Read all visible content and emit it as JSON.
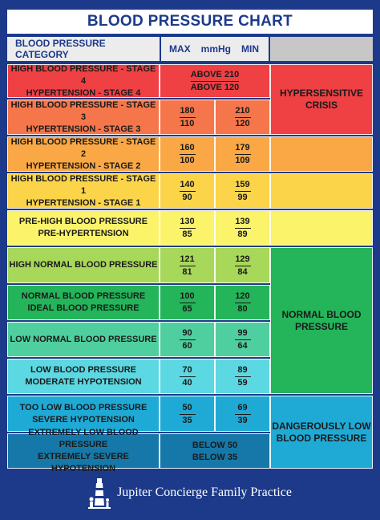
{
  "title": "BLOOD PRESSURE CHART",
  "header": {
    "category": "BLOOD PRESSURE CATEGORY",
    "max": "MAX",
    "unit": "mmHg",
    "min": "MIN"
  },
  "rows": [
    {
      "line1": "HIGH BLOOD PRESSURE - STAGE 4",
      "line2": "HYPERTENSION - STAGE 4",
      "combined_top": "ABOVE 210",
      "combined_bottom": "ABOVE 120",
      "color": "#ef4044"
    },
    {
      "line1": "HIGH BLOOD PRESSURE - STAGE 3",
      "line2": "HYPERTENSION - STAGE 3",
      "max_top": "180",
      "max_bottom": "110",
      "min_top": "210",
      "min_bottom": "120",
      "color": "#f4764a"
    },
    {
      "line1": "HIGH BLOOD PRESSURE - STAGE 2",
      "line2": "HYPERTENSION - STAGE 2",
      "max_top": "160",
      "max_bottom": "100",
      "min_top": "179",
      "min_bottom": "109",
      "color": "#f9a845"
    },
    {
      "line1": "HIGH BLOOD PRESSURE - STAGE 1",
      "line2": "HYPERTENSION - STAGE 1",
      "max_top": "140",
      "max_bottom": "90",
      "min_top": "159",
      "min_bottom": "99",
      "color": "#fbd449"
    },
    {
      "line1": "PRE-HIGH BLOOD PRESSURE",
      "line2": "PRE-HYPERTENSION",
      "max_top": "130",
      "max_bottom": "85",
      "min_top": "139",
      "min_bottom": "89",
      "color": "#fbf36a"
    },
    {
      "line1": "HIGH NORMAL BLOOD PRESSURE",
      "line2": "",
      "max_top": "121",
      "max_bottom": "81",
      "min_top": "129",
      "min_bottom": "84",
      "color": "#a8d85a"
    },
    {
      "line1": "NORMAL BLOOD PRESSURE",
      "line2": "IDEAL BLOOD PRESSURE",
      "max_top": "100",
      "max_bottom": "65",
      "min_top": "120",
      "min_bottom": "80",
      "color": "#24b45a"
    },
    {
      "line1": "LOW NORMAL BLOOD PRESSURE",
      "line2": "",
      "max_top": "90",
      "max_bottom": "60",
      "min_top": "99",
      "min_bottom": "64",
      "color": "#4fcfa0"
    },
    {
      "line1": "LOW BLOOD PRESSURE",
      "line2": "MODERATE HYPOTENSION",
      "max_top": "70",
      "max_bottom": "40",
      "min_top": "89",
      "min_bottom": "59",
      "color": "#5cd8e2"
    },
    {
      "line1": "TOO LOW BLOOD PRESSURE",
      "line2": "SEVERE HYPOTENSION",
      "max_top": "50",
      "max_bottom": "35",
      "min_top": "69",
      "min_bottom": "39",
      "color": "#1faad6"
    },
    {
      "line1": "EXTREMELY LOW BLOOD PRESSURE",
      "line2": "EXTREMELY SEVERE HYPOTENSION",
      "combined_top": "BELOW 50",
      "combined_bottom": "BELOW 35",
      "color": "#1678a8"
    }
  ],
  "groups": [
    {
      "label": "HYPERSENSITIVE CRISIS",
      "color": "#ef4044"
    },
    {
      "label": "",
      "color": "#f4764a"
    },
    {
      "label": "",
      "color": "#f9a845"
    },
    {
      "label": "",
      "color": "#fbd449"
    },
    {
      "label": "",
      "color": "#fbf36a"
    },
    {
      "label": "NORMAL BLOOD PRESSURE",
      "color": "#24b45a"
    },
    {
      "label": "DANGEROUSLY LOW BLOOD PRESSURE",
      "color": "#1faad6"
    }
  ],
  "footer": {
    "practice_name": "Jupiter Concierge Family Practice",
    "logo_icon": "lighthouse-family-icon"
  }
}
